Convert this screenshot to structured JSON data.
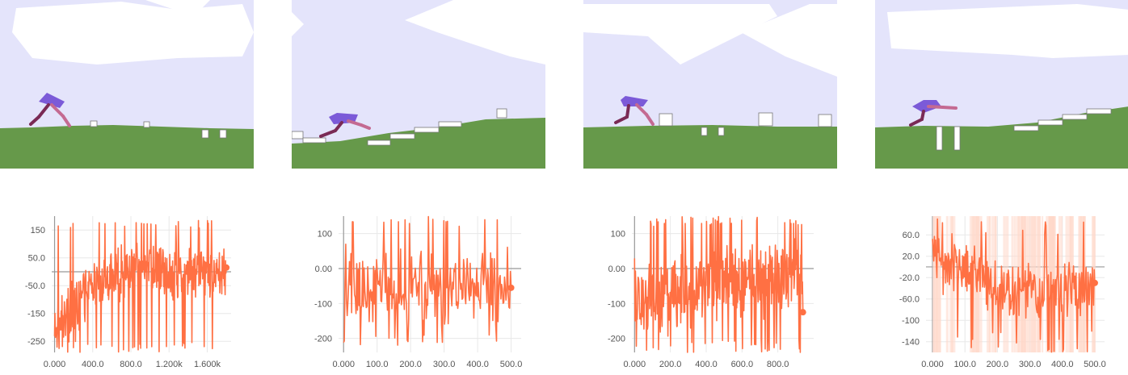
{
  "colors": {
    "sky": "#e4e4fb",
    "cloud": "#ffffff",
    "ground": "#66994a",
    "obstacle": "#ffffff",
    "walker_hull": "#7b5ad8",
    "walker_leg_dark": "#7a2a55",
    "walker_leg_light": "#c46a92",
    "series_line": "#ff7043",
    "series_shade": "#ffd7c8",
    "grid": "#e8e8e8",
    "axis": "#999999",
    "tick_text": "#555555"
  },
  "icons": [
    "walker-robot-icon",
    "obstacle-icon",
    "cloud-icon"
  ],
  "scenes": [
    {
      "terrain": "flat with small stumps and pit"
    },
    {
      "terrain": "rising slope with stair steps"
    },
    {
      "terrain": "flat with stumps and pit"
    },
    {
      "terrain": "pit then ascending stairs"
    }
  ],
  "chart_data": [
    {
      "type": "line",
      "grid": true,
      "ylim": [
        -290,
        200
      ],
      "xlim": [
        -30,
        1850
      ],
      "x_ticks": [
        0,
        400,
        800,
        1200,
        1600
      ],
      "x_tick_labels": [
        "0.000",
        "400.0",
        "800.0",
        "1.200k",
        "1.600k"
      ],
      "y_ticks": [
        150,
        50,
        -50,
        -150,
        -250
      ],
      "y_tick_labels": [
        "150",
        "50.0",
        "-50.0",
        "-150",
        "-250"
      ],
      "series": [
        {
          "x_start": 0,
          "x_end": 1800,
          "n_points": 420,
          "trend": [
            [
              0,
              -180
            ],
            [
              150,
              -150
            ],
            [
              350,
              -60
            ],
            [
              600,
              -20
            ],
            [
              900,
              20
            ],
            [
              1200,
              0
            ],
            [
              1500,
              10
            ],
            [
              1800,
              0
            ]
          ],
          "noise": 80,
          "y_min": -290,
          "y_max": 185,
          "last_value": 15
        }
      ]
    },
    {
      "type": "line",
      "grid": true,
      "ylim": [
        -240,
        150
      ],
      "xlim": [
        -15,
        530
      ],
      "x_ticks": [
        0,
        100,
        200,
        300,
        400,
        500
      ],
      "x_tick_labels": [
        "0.000",
        "100.0",
        "200.0",
        "300.0",
        "400.0",
        "500.0"
      ],
      "y_ticks": [
        100,
        0,
        -100,
        -200
      ],
      "y_tick_labels": [
        "100",
        "0.00",
        "-100",
        "-200"
      ],
      "series": [
        {
          "x_start": 0,
          "x_end": 500,
          "n_points": 230,
          "trend": [
            [
              0,
              -40
            ],
            [
              250,
              -50
            ],
            [
              500,
              -40
            ]
          ],
          "noise": 90,
          "y_min": -230,
          "y_max": 150,
          "last_value": -55
        }
      ]
    },
    {
      "type": "line",
      "grid": true,
      "ylim": [
        -240,
        150
      ],
      "xlim": [
        -15,
        1000
      ],
      "x_ticks": [
        0,
        200,
        400,
        600,
        800
      ],
      "x_tick_labels": [
        "0.000",
        "200.0",
        "400.0",
        "600.0",
        "800.0"
      ],
      "y_ticks": [
        100,
        0,
        -100,
        -200
      ],
      "y_tick_labels": [
        "100",
        "0.00",
        "-100",
        "-200"
      ],
      "series": [
        {
          "x_start": 0,
          "x_end": 940,
          "n_points": 380,
          "trend": [
            [
              0,
              -90
            ],
            [
              300,
              -60
            ],
            [
              600,
              -30
            ],
            [
              940,
              -20
            ]
          ],
          "noise": 90,
          "y_min": -240,
          "y_max": 150,
          "last_value": -125
        }
      ]
    },
    {
      "type": "line",
      "grid": true,
      "ylim": [
        -160,
        95
      ],
      "xlim": [
        -20,
        530
      ],
      "x_ticks": [
        0,
        100,
        200,
        300,
        400,
        500
      ],
      "x_tick_labels": [
        "0.000",
        "100.0",
        "200.0",
        "300.0",
        "400.0",
        "500.0"
      ],
      "y_ticks": [
        60,
        20,
        -20,
        -60,
        -100,
        -140
      ],
      "y_tick_labels": [
        "60.0",
        "20.0",
        "-20.0",
        "-60.0",
        "-100",
        "-140"
      ],
      "series": [
        {
          "x_start": 0,
          "x_end": 500,
          "n_points": 260,
          "trend": [
            [
              0,
              20
            ],
            [
              100,
              -10
            ],
            [
              250,
              -50
            ],
            [
              400,
              -40
            ],
            [
              500,
              -40
            ]
          ],
          "noise": 45,
          "y_min": -160,
          "y_max": 90,
          "last_value": -30,
          "shaded_band": true
        }
      ]
    }
  ]
}
